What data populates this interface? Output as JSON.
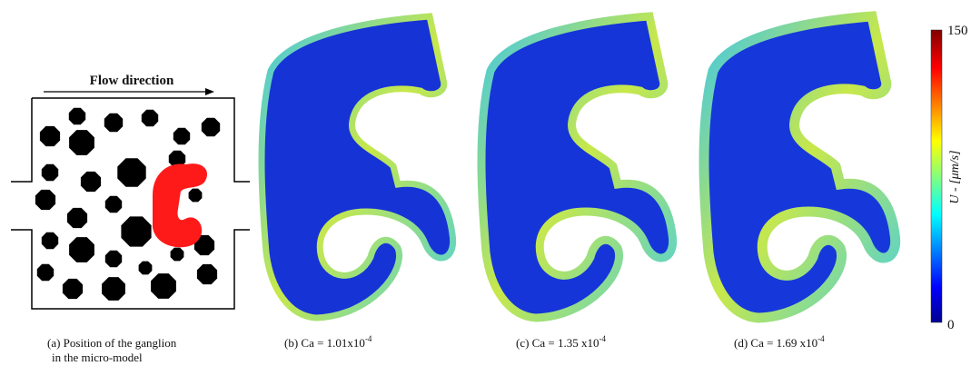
{
  "figure": {
    "flow_label": "Flow direction",
    "panel_a": {
      "caption_line1": "(a) Position of the ganglion",
      "caption_line2": "in the micro-model"
    },
    "panels": [
      {
        "caption": "(b) Ca = 1.01x10",
        "exponent": "-4"
      },
      {
        "caption": "(c) Ca = 1.35 x10",
        "exponent": "-4"
      },
      {
        "caption": "(d) Ca = 1.69 x10",
        "exponent": "-4"
      }
    ],
    "colorbar": {
      "max": "150",
      "min": "0",
      "label": "U - [μm/s]"
    }
  }
}
